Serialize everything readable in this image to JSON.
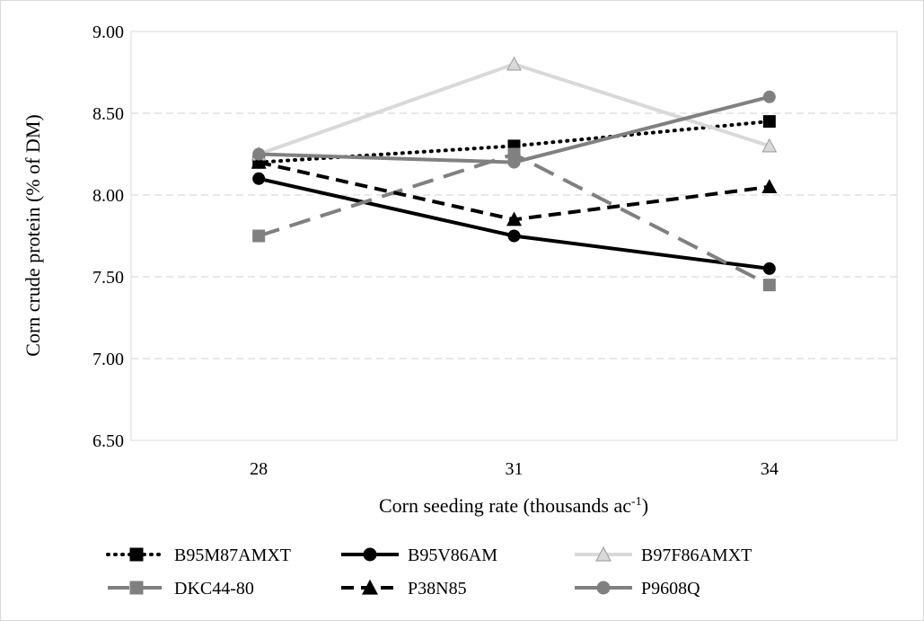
{
  "chart_data": {
    "type": "line",
    "title": "",
    "xlabel": "Corn seeding rate (thousands ac",
    "xlabel_sup": "-1",
    "xlabel_suffix": ")",
    "ylabel": "Corn crude protein (% of DM)",
    "categories": [
      "28",
      "31",
      "34"
    ],
    "ylim": [
      6.5,
      9.0
    ],
    "yticks": [
      "6.50",
      "7.00",
      "7.50",
      "8.00",
      "8.50",
      "9.00"
    ],
    "grid": "horizontal dashed",
    "legend_position": "bottom",
    "series": [
      {
        "name": "B95M87AMXT",
        "values": [
          8.2,
          8.3,
          8.45
        ],
        "color": "#000000",
        "dash": "dotted",
        "marker": "square"
      },
      {
        "name": "B95V86AM",
        "values": [
          8.1,
          7.75,
          7.55
        ],
        "color": "#000000",
        "dash": "solid",
        "marker": "circle"
      },
      {
        "name": "B97F86AMXT",
        "values": [
          8.25,
          8.8,
          8.3
        ],
        "color": "#d9d9d9",
        "marker_fill": "#d9d9d9",
        "marker_stroke": "#a6a6a6",
        "dash": "solid",
        "marker": "triangle"
      },
      {
        "name": "DKC44-80",
        "values": [
          7.75,
          8.25,
          7.45
        ],
        "color": "#808080",
        "dash": "long-dash",
        "marker": "square"
      },
      {
        "name": "P38N85",
        "values": [
          8.2,
          7.85,
          8.05
        ],
        "color": "#000000",
        "dash": "dash",
        "marker": "triangle"
      },
      {
        "name": "P9608Q",
        "values": [
          8.25,
          8.2,
          8.6
        ],
        "color": "#808080",
        "dash": "solid",
        "marker": "circle"
      }
    ]
  }
}
